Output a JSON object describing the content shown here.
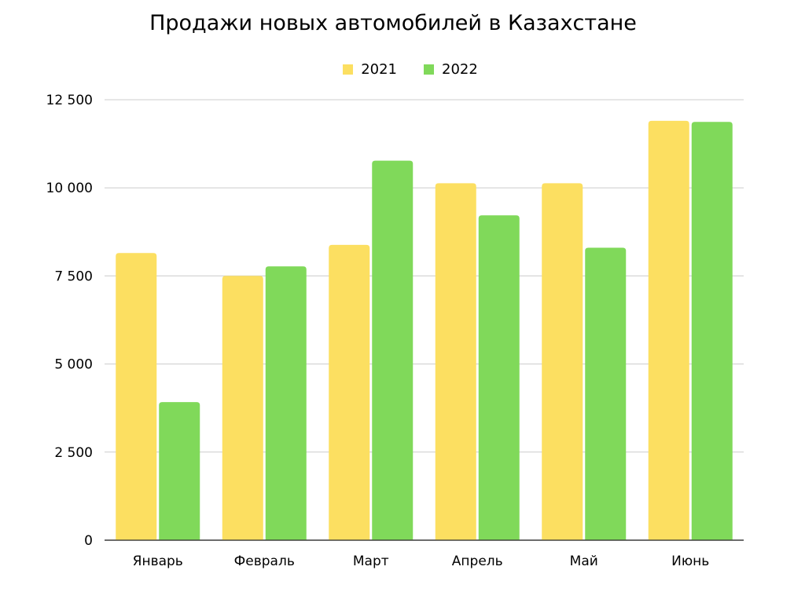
{
  "chart_data": {
    "type": "bar",
    "title": "Продажи новых автомобилей в Казахстане",
    "xlabel": "",
    "ylabel": "",
    "categories": [
      "Январь",
      "Февраль",
      "Март",
      "Апрель",
      "Май",
      "Июнь"
    ],
    "series": [
      {
        "name": "2021",
        "color": "#fcdf61",
        "values": [
          8150,
          7500,
          8380,
          10130,
          10130,
          11900
        ]
      },
      {
        "name": "2022",
        "color": "#80d95a",
        "values": [
          3920,
          7770,
          10770,
          9220,
          8300,
          11870
        ]
      }
    ],
    "ylim": [
      0,
      12500
    ],
    "yticks": [
      0,
      2500,
      5000,
      7500,
      10000,
      12500
    ],
    "ytick_labels": [
      "0",
      "2 500",
      "5 000",
      "7 500",
      "10 000",
      "12 500"
    ],
    "grid": true,
    "legend_position": "top-center"
  }
}
